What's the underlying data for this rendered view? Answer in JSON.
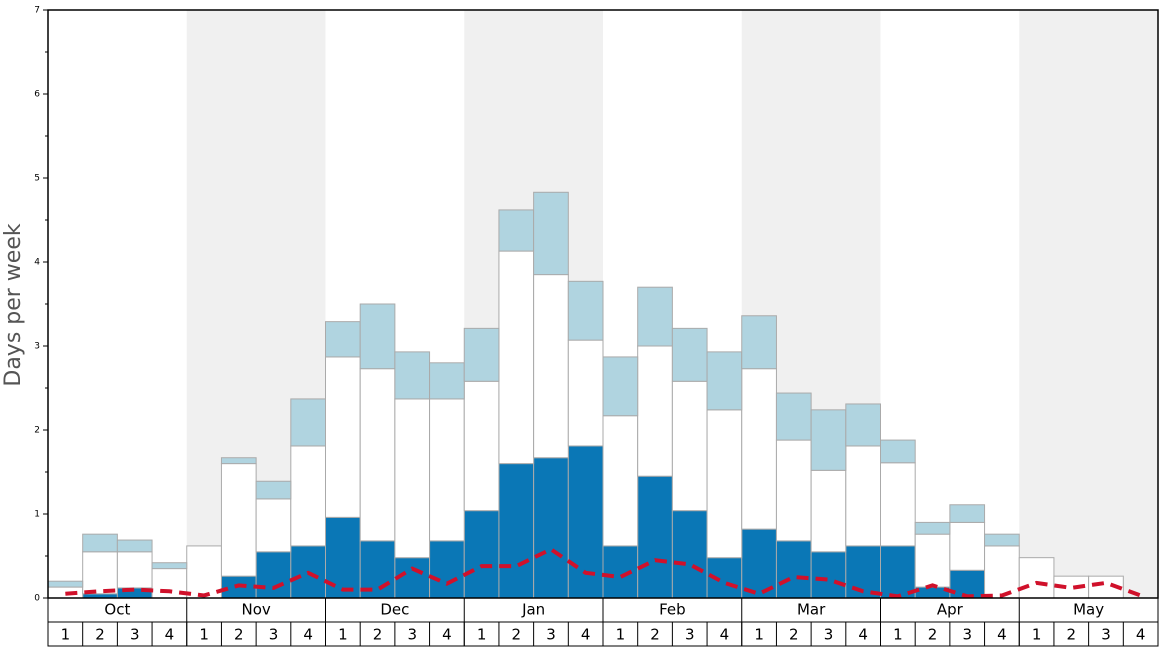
{
  "chart_data": {
    "type": "stacked_bar_line",
    "y_label": "Days per week",
    "months": [
      "Oct",
      "Nov",
      "Dec",
      "Jan",
      "Feb",
      "Mar",
      "Apr",
      "May"
    ],
    "categories": [
      "1",
      "2",
      "3",
      "4",
      "1",
      "2",
      "3",
      "4",
      "1",
      "2",
      "3",
      "4",
      "1",
      "2",
      "3",
      "4",
      "1",
      "2",
      "3",
      "4",
      "1",
      "2",
      "3",
      "4",
      "1",
      "2",
      "3",
      "4",
      "1",
      "2",
      "3",
      "4"
    ],
    "series": [
      {
        "color": "#0a77b6",
        "values": [
          0,
          0.05,
          0.12,
          0,
          0,
          0.26,
          0.55,
          0.62,
          0.96,
          0.68,
          0.48,
          0.68,
          1.04,
          1.6,
          1.67,
          1.81,
          0.62,
          1.45,
          1.04,
          0.48,
          0.82,
          0.68,
          0.55,
          0.62,
          0.62,
          0.13,
          0.33,
          0,
          0,
          0,
          0,
          0
        ]
      },
      {
        "color": "#ffffff",
        "values": [
          0.13,
          0.5,
          0.43,
          0.35,
          0.62,
          1.34,
          0.63,
          1.19,
          1.91,
          2.05,
          1.89,
          1.69,
          1.54,
          2.53,
          2.18,
          1.26,
          1.55,
          1.55,
          1.54,
          1.76,
          1.91,
          1.2,
          0.97,
          1.19,
          0.99,
          0.63,
          0.57,
          0.62,
          0.48,
          0.26,
          0.26,
          0
        ]
      },
      {
        "color": "#b0d4e0",
        "values": [
          0.07,
          0.21,
          0.14,
          0.07,
          0,
          0.07,
          0.21,
          0.56,
          0.42,
          0.77,
          0.56,
          0.43,
          0.63,
          0.49,
          0.98,
          0.7,
          0.7,
          0.7,
          0.63,
          0.69,
          0.63,
          0.56,
          0.72,
          0.5,
          0.27,
          0.14,
          0.21,
          0.14,
          0,
          0,
          0,
          0
        ]
      }
    ],
    "line": {
      "color": "#d0112b",
      "values": [
        0.05,
        0.08,
        0.1,
        0.08,
        0.03,
        0.15,
        0.12,
        0.3,
        0.1,
        0.1,
        0.35,
        0.17,
        0.38,
        0.38,
        0.58,
        0.3,
        0.25,
        0.45,
        0.4,
        0.18,
        0.05,
        0.25,
        0.22,
        0.08,
        0.02,
        0.15,
        0.02,
        0.03,
        0.18,
        0.12,
        0.18,
        0.03
      ]
    },
    "ylim": [
      0,
      7
    ],
    "yticks": [
      0,
      1,
      2,
      3,
      4,
      5,
      6,
      7
    ],
    "yminorticks": [
      0.5,
      1.5,
      2.5,
      3.5,
      4.5,
      5.5,
      6.5
    ]
  }
}
